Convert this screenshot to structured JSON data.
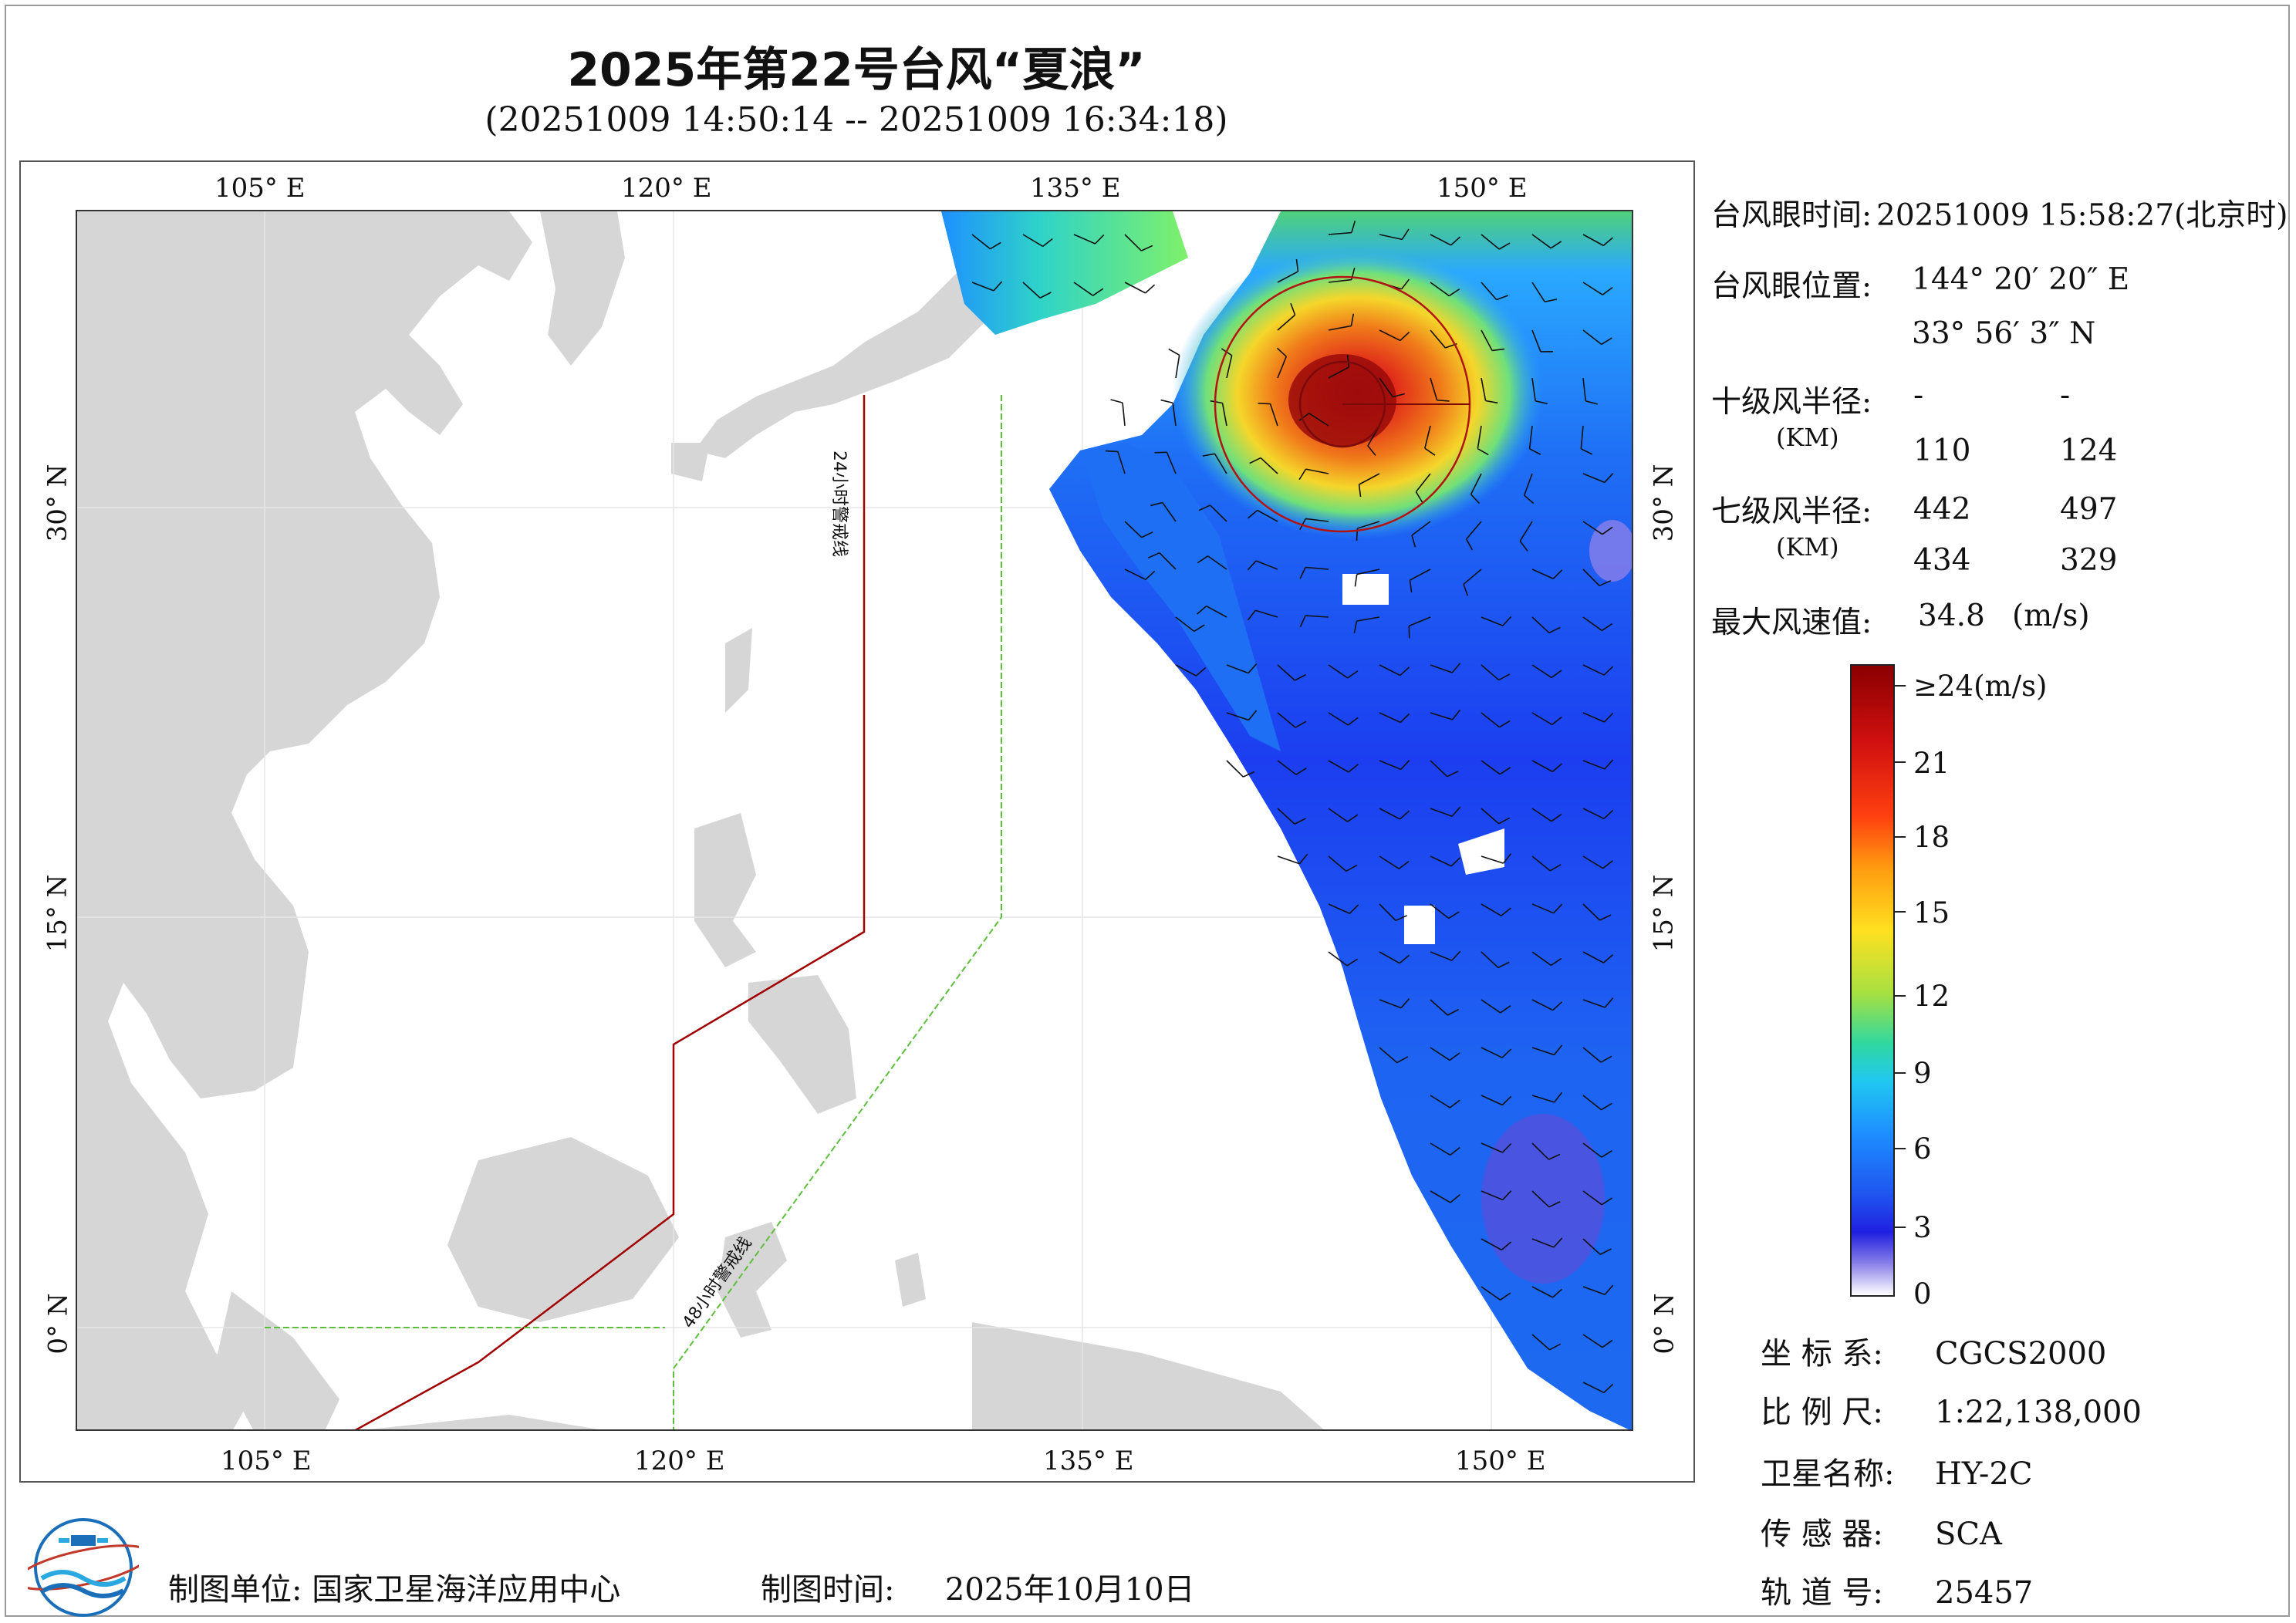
{
  "title": "2025年第22号台风“夏浪”",
  "subtitle": "(20251009 14:50:14 -- 20251009 16:34:18)",
  "map": {
    "lon_labels": [
      "105° E",
      "120° E",
      "135° E",
      "150° E"
    ],
    "lat_labels": [
      "30° N",
      "15° N",
      "0° N"
    ],
    "warning_24h_label": "24小时警戒线",
    "warning_48h_label": "48小时警戒线",
    "warning_24h_color": "#a00000",
    "warning_48h_color": "#5cbf3c",
    "land_color": "#d6d6d6"
  },
  "panel": {
    "eye_time_label": "台风眼时间:",
    "eye_time_value": "20251009 15:58:27(北京时)",
    "eye_pos_label": "台风眼位置:",
    "eye_lon": "144° 20′ 20″ E",
    "eye_lat": "33° 56′ 3″ N",
    "r10_label": "十级风半径:",
    "r10_unit": "(KM)",
    "r10_values": [
      "-",
      "-",
      "110",
      "124"
    ],
    "r7_label": "七级风半径:",
    "r7_unit": "(KM)",
    "r7_values": [
      "442",
      "497",
      "434",
      "329"
    ],
    "max_wind_label": "最大风速值:",
    "max_wind_value": "34.8",
    "max_wind_unit": "(m/s)"
  },
  "colorbar": {
    "labels": [
      "≥24(m/s)",
      "21",
      "18",
      "15",
      "12",
      "9",
      "6",
      "3",
      "0"
    ],
    "values": [
      24,
      21,
      18,
      15,
      12,
      9,
      6,
      3,
      0
    ]
  },
  "info": {
    "crs_label": "坐 标 系:",
    "crs_value": "CGCS2000",
    "scale_label": "比 例 尺:",
    "scale_value": "1:22,138,000",
    "satellite_label": "卫星名称:",
    "satellite_value": "HY-2C",
    "sensor_label": "传 感 器:",
    "sensor_value": "SCA",
    "orbit_label": "轨 道 号:",
    "orbit_value": "25457"
  },
  "footer": {
    "unit_label": "制图单位:",
    "unit_value": "国家卫星海洋应用中心",
    "date_label": "制图时间:",
    "date_value": "2025年10月10日"
  }
}
